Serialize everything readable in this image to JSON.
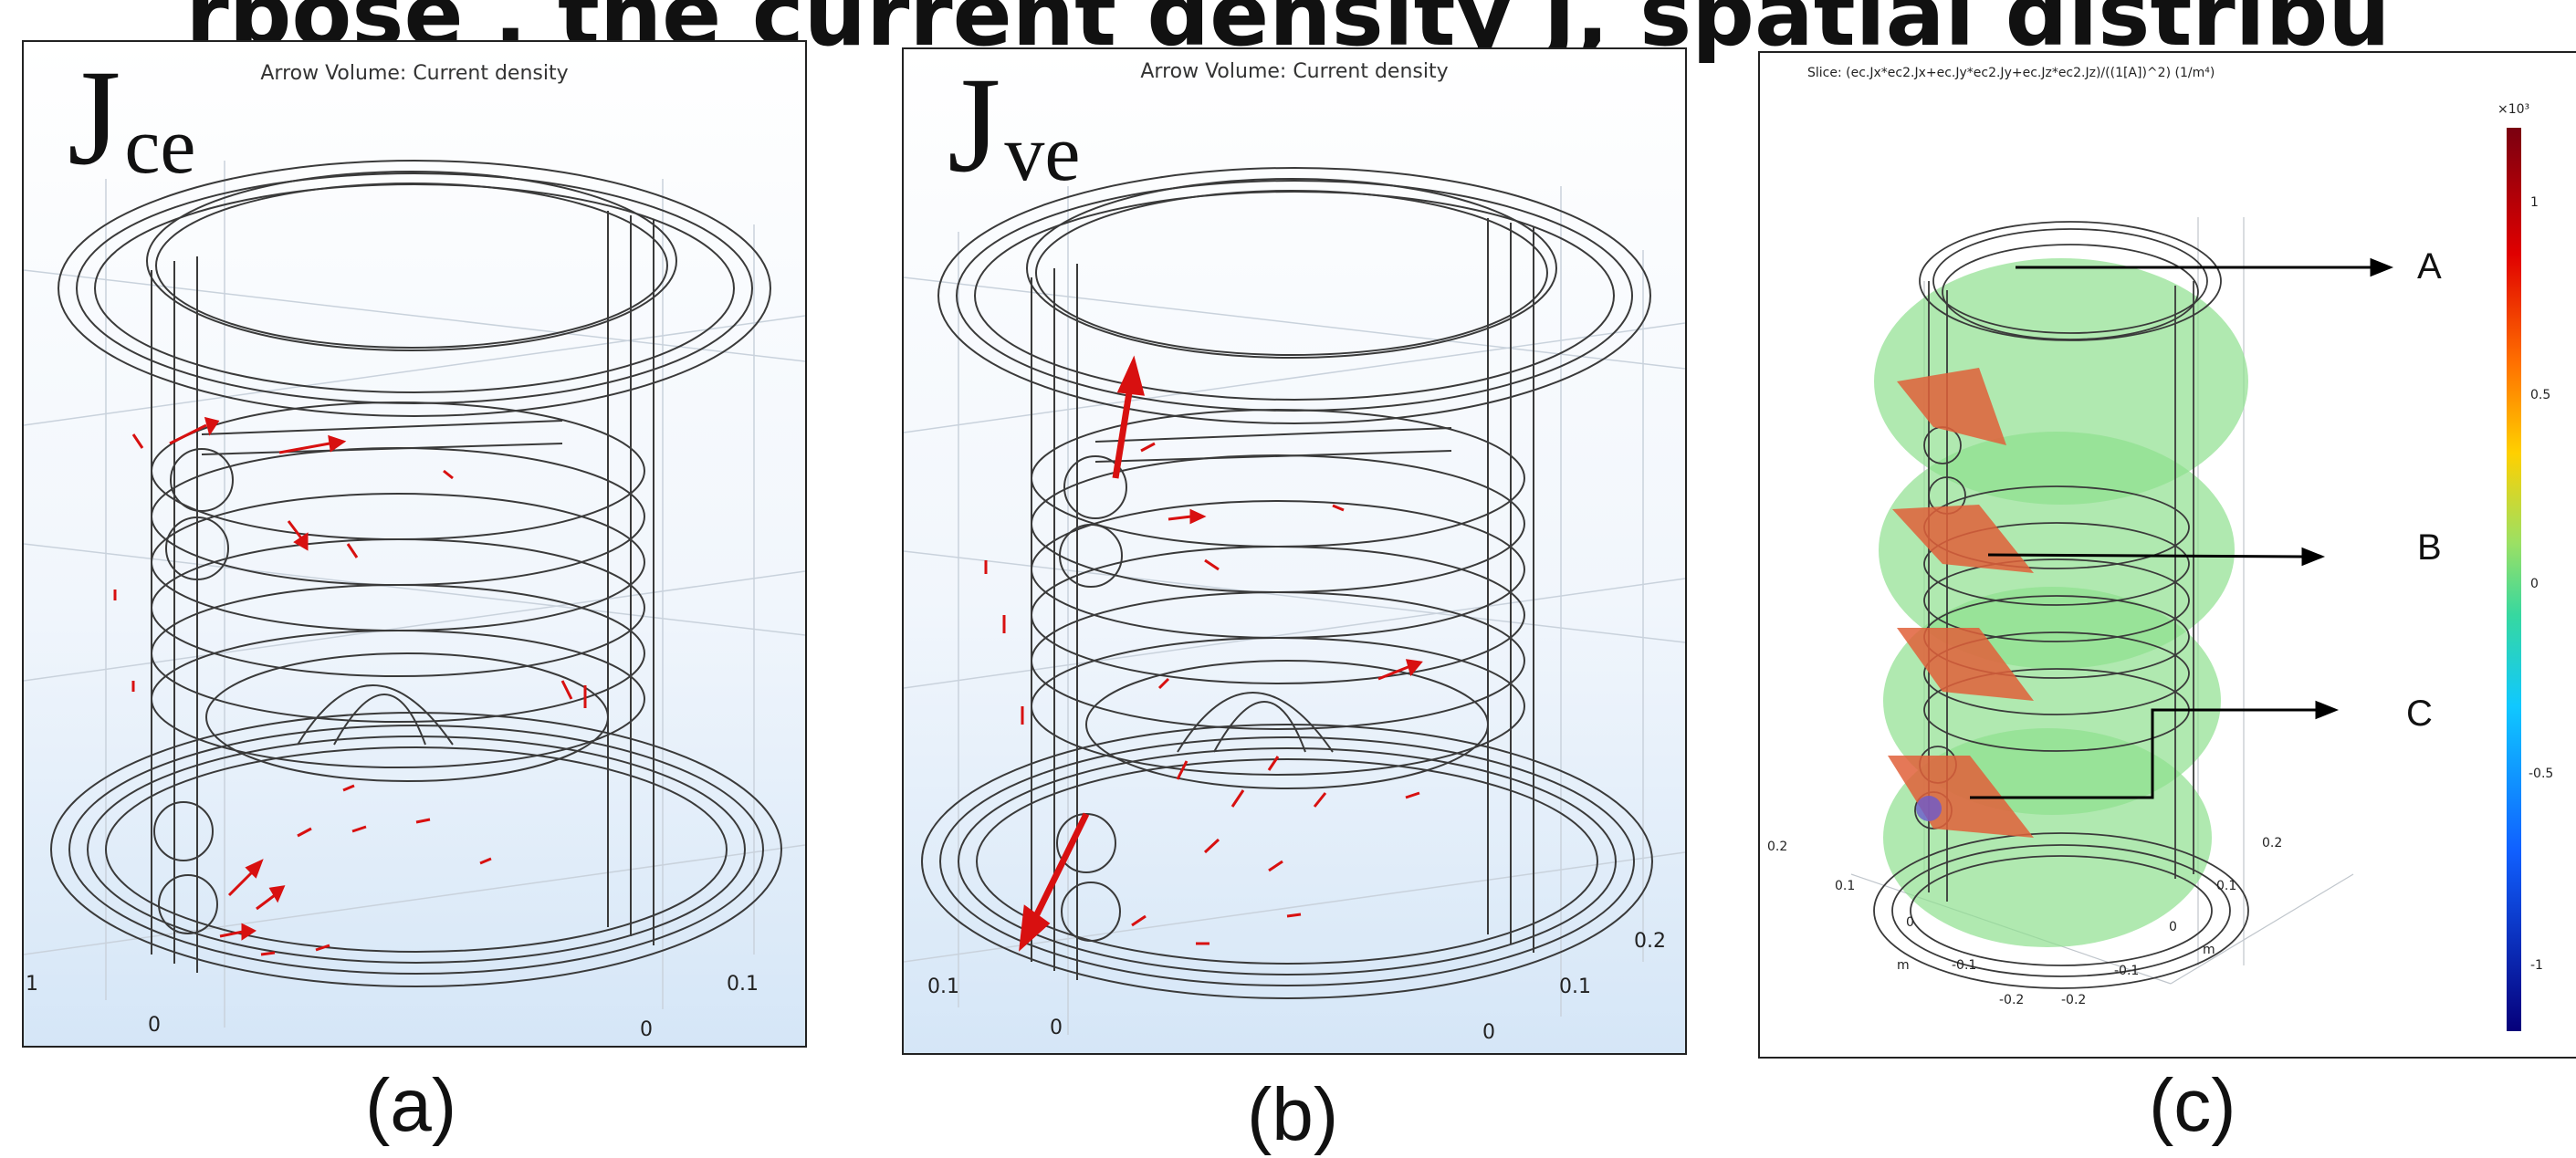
{
  "top_fragment": "rpose , the current density J, spatial distribu",
  "panels": [
    {
      "title": "Arrow Volume: Current density",
      "symbol": "J",
      "sub": "ce",
      "caption": "(a)",
      "ticks": {
        "a": "1",
        "b": "0",
        "c": "0.1",
        "d": "0"
      }
    },
    {
      "title": "Arrow Volume: Current density",
      "symbol": "J",
      "sub": "ve",
      "caption": "(b)",
      "ticks": {
        "a": "0.1",
        "b": "0",
        "c": "0.2",
        "d": "0.1",
        "e": "0"
      }
    },
    {
      "title": "Slice: (ec.Jx*ec2.Jx+ec.Jy*ec2.Jy+ec.Jz*ec2.Jz)/((1[A])^2) (1/m⁴)",
      "caption": "(c)",
      "labels": {
        "A": "A",
        "B": "B",
        "C": "C"
      },
      "ticks": {
        "y1": "0.2",
        "y2": "0.1",
        "y3": "0",
        "ym": "m",
        "x1": "-0.1",
        "x2": "-0.2",
        "z1": "0.2",
        "z2": "0.1",
        "z3": "0",
        "zm": "m",
        "z4": "-0.1",
        "z5": "-0.2"
      },
      "colorbar": {
        "exponent": "×10³",
        "ticks": [
          "1",
          "0.5",
          "0",
          "-0.5",
          "-1"
        ]
      }
    }
  ],
  "colors": {
    "arrow": "#d81010",
    "slice": "#8fe08f",
    "hotspot": "#e0603a",
    "frame": "#222222"
  }
}
